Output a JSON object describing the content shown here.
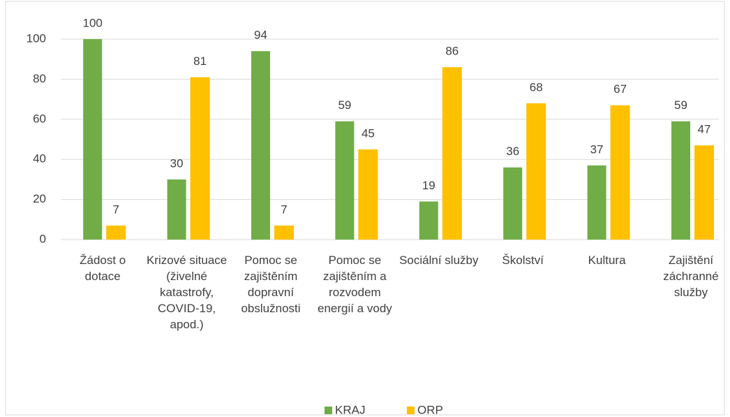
{
  "chart_data": {
    "type": "bar",
    "categories": [
      "Žádost o dotace",
      "Krizové situace (živelné katastrofy, COVID-19, apod.)",
      "Pomoc se zajištěním dopravní obslužnosti",
      "Pomoc se zajištěním a rozvodem energií a vody",
      "Sociální služby",
      "Školství",
      "Kultura",
      "Zajištění záchranné služby"
    ],
    "series": [
      {
        "name": "KRAJ",
        "color": "#70ad47",
        "values": [
          100,
          30,
          94,
          59,
          19,
          36,
          37,
          59
        ]
      },
      {
        "name": "ORP",
        "color": "#ffc000",
        "values": [
          7,
          81,
          7,
          45,
          86,
          68,
          67,
          47
        ]
      }
    ],
    "ylim": [
      0,
      100
    ],
    "yticks": [
      0,
      20,
      40,
      60,
      80,
      100
    ],
    "grid": true,
    "legend": "bottom"
  }
}
